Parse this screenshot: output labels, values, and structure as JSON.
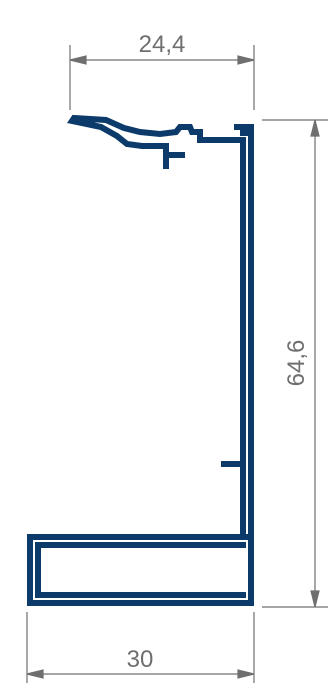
{
  "dimensions": {
    "top_width": "24,4",
    "height": "64,6",
    "bottom_width": "30"
  },
  "colors": {
    "profile": "#0c3a6a",
    "dimension_lines": "#6f6f6f"
  }
}
